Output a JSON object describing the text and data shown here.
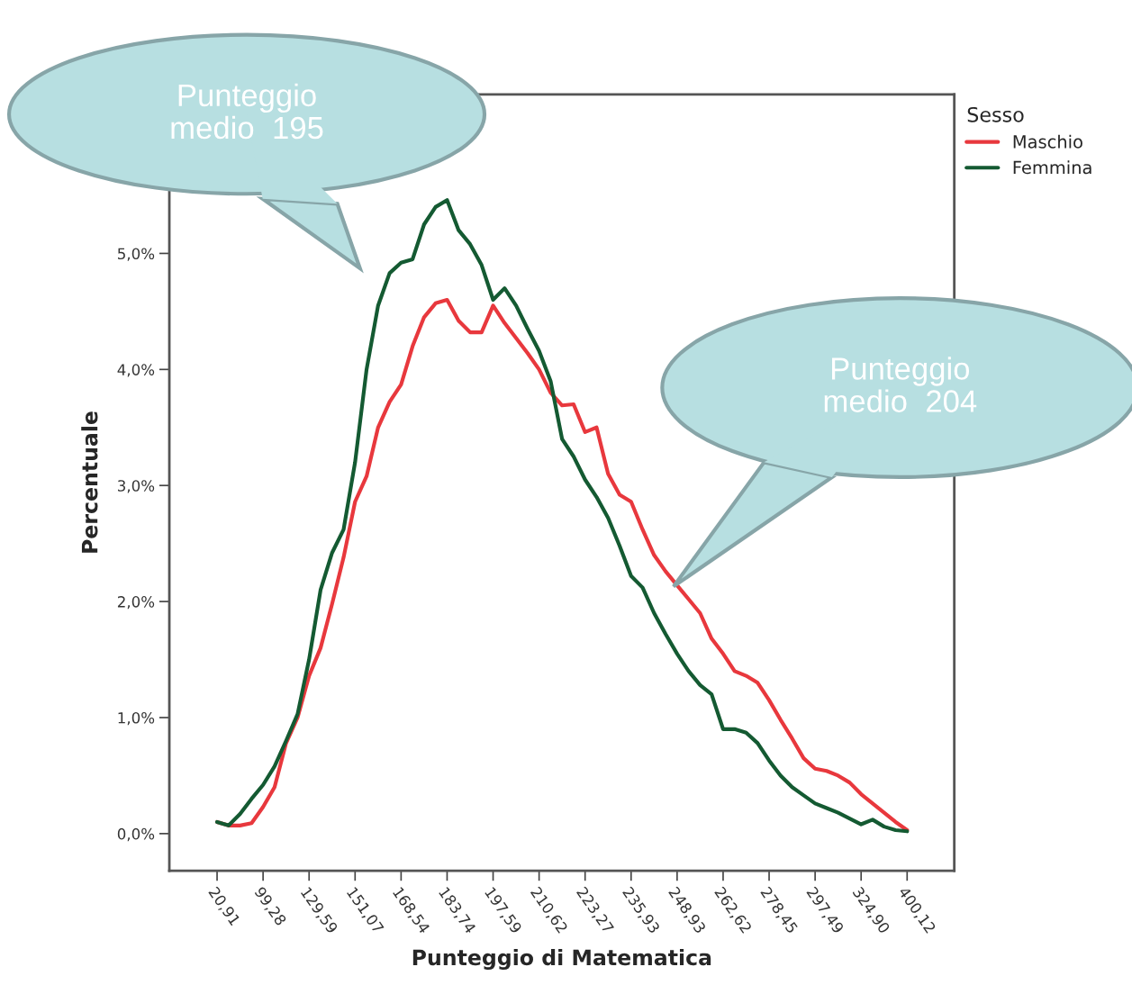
{
  "chart_data": {
    "type": "line",
    "xlabel": "Punteggio di Matematica",
    "ylabel": "Percentuale",
    "legend_title": "Sesso",
    "categories": [
      "20,91",
      null,
      null,
      null,
      "99,28",
      null,
      null,
      null,
      "129,59",
      null,
      null,
      null,
      "151,07",
      null,
      null,
      null,
      "168,54",
      null,
      null,
      null,
      "183,74",
      null,
      null,
      null,
      "197,59",
      null,
      null,
      null,
      "210,62",
      null,
      null,
      null,
      "223,27",
      null,
      null,
      null,
      "235,93",
      null,
      null,
      null,
      "248,93",
      null,
      null,
      null,
      "262,62",
      null,
      null,
      null,
      "278,45",
      null,
      null,
      null,
      "297,49",
      null,
      null,
      null,
      "324,90",
      null,
      null,
      null,
      "400,12"
    ],
    "series": [
      {
        "name": "Maschio",
        "color": "#e8383d",
        "values": [
          0.1,
          0.07,
          0.07,
          0.09,
          0.23,
          0.4,
          0.78,
          1.0,
          1.36,
          1.6,
          1.98,
          2.38,
          2.86,
          3.08,
          3.5,
          3.72,
          3.87,
          4.2,
          4.45,
          4.57,
          4.6,
          4.42,
          4.32,
          4.32,
          4.55,
          4.4,
          4.27,
          4.14,
          4.0,
          3.8,
          3.69,
          3.7,
          3.46,
          3.5,
          3.1,
          2.92,
          2.86,
          2.62,
          2.4,
          2.26,
          2.14,
          2.02,
          1.9,
          1.68,
          1.55,
          1.4,
          1.36,
          1.3,
          1.15,
          0.98,
          0.82,
          0.65,
          0.56,
          0.54,
          0.5,
          0.44,
          0.34,
          0.26,
          0.18,
          0.1,
          0.03
        ]
      },
      {
        "name": "Femmina",
        "color": "#145a32",
        "values": [
          0.1,
          0.07,
          0.17,
          0.3,
          0.42,
          0.58,
          0.8,
          1.03,
          1.5,
          2.1,
          2.42,
          2.62,
          3.2,
          4.0,
          4.55,
          4.83,
          4.92,
          4.95,
          5.25,
          5.4,
          5.46,
          5.2,
          5.08,
          4.9,
          4.6,
          4.7,
          4.55,
          4.35,
          4.16,
          3.9,
          3.4,
          3.25,
          3.05,
          2.9,
          2.72,
          2.48,
          2.22,
          2.12,
          1.9,
          1.72,
          1.55,
          1.4,
          1.28,
          1.2,
          0.9,
          0.9,
          0.87,
          0.78,
          0.63,
          0.5,
          0.4,
          0.33,
          0.26,
          0.22,
          0.18,
          0.13,
          0.08,
          0.12,
          0.06,
          0.03,
          0.02
        ]
      }
    ],
    "ylim": [
      -0.32,
      6.37
    ],
    "yticks": [
      {
        "value": 0,
        "label": "0,0%"
      },
      {
        "value": 1,
        "label": "1,0%"
      },
      {
        "value": 2,
        "label": "2,0%"
      },
      {
        "value": 3,
        "label": "3,0%"
      },
      {
        "value": 4,
        "label": "4,0%"
      },
      {
        "value": 5,
        "label": "5,0%"
      }
    ],
    "annotations": [
      "Punteggio\nmedio  195",
      "Punteggio\nmedio  204"
    ],
    "grid": false,
    "legend": "top right",
    "marker": "none",
    "line_style": "solid"
  }
}
